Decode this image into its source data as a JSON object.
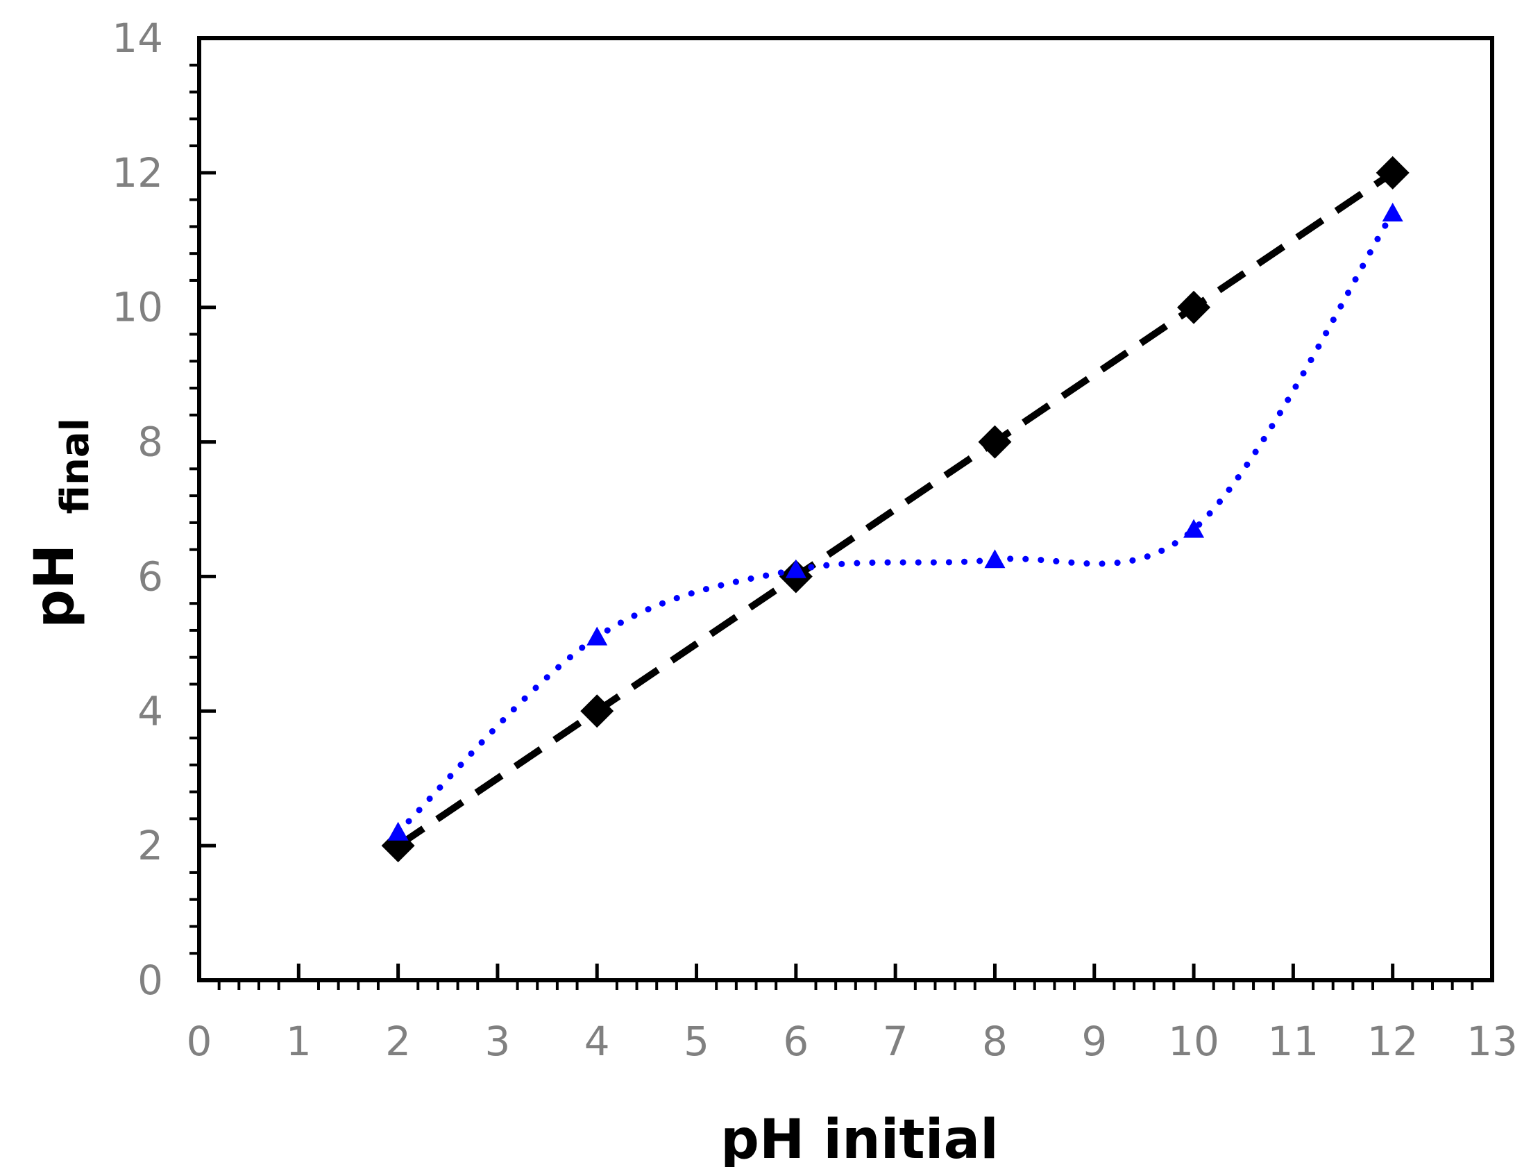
{
  "chart_data": {
    "type": "line",
    "xlabel": "pH initial",
    "ylabel_main": "pH",
    "ylabel_sub": "final",
    "xlim": [
      0,
      13
    ],
    "ylim": [
      0,
      14
    ],
    "x_ticks": [
      "0",
      "1",
      "2",
      "3",
      "4",
      "5",
      "6",
      "7",
      "8",
      "9",
      "10",
      "11",
      "12",
      "13"
    ],
    "y_ticks": [
      "0",
      "2",
      "4",
      "6",
      "8",
      "10",
      "12",
      "14"
    ],
    "grid": false,
    "series": [
      {
        "style": "dashed",
        "marker": "diamond",
        "color": "#000000",
        "x": [
          2,
          4,
          6,
          8,
          10,
          12
        ],
        "y": [
          2,
          4,
          6,
          8,
          10,
          12
        ]
      },
      {
        "style": "dotted-smooth",
        "marker": "triangle",
        "color": "#0000ff",
        "x": [
          2,
          4,
          6,
          8,
          10,
          12
        ],
        "y": [
          2.2,
          5.1,
          6.1,
          6.25,
          6.7,
          11.4
        ]
      }
    ]
  }
}
